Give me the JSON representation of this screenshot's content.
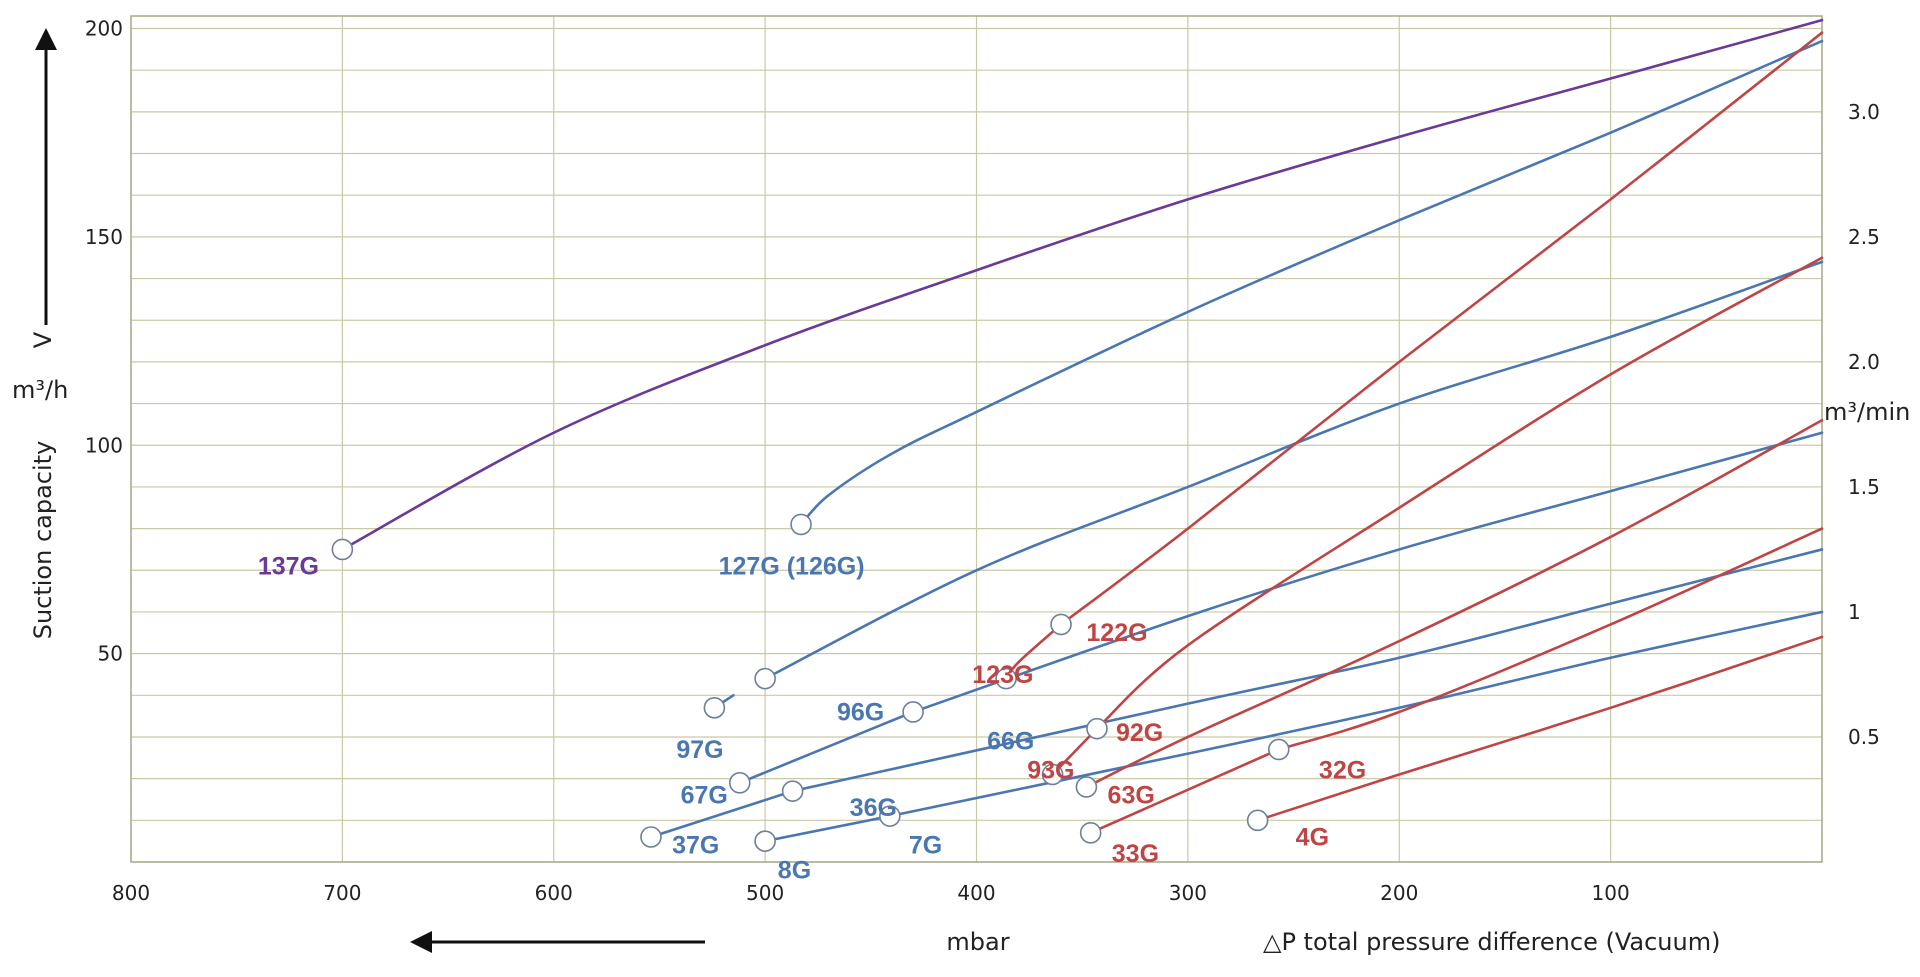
{
  "chart_data": {
    "type": "line",
    "title": "",
    "xlabel": "mbar",
    "x_description": "△P total pressure difference (Vacuum)",
    "ylabel": "Suction capacity",
    "ylabel_symbol": "V",
    "yunit": "m³/h",
    "y2unit": "m³/min",
    "xlim": [
      800,
      0
    ],
    "ylim": [
      0,
      203
    ],
    "x_ticks": [
      "800",
      "700",
      "600",
      "500",
      "400",
      "300",
      "200",
      "100"
    ],
    "y_ticks": [
      "200",
      "150",
      "100",
      "50"
    ],
    "y2_ticks": [
      "3.0",
      "2.5",
      "2.0",
      "1.5",
      "1",
      "0.5"
    ],
    "grid": true,
    "colors": {
      "purple": "#6a3a96",
      "blue": "#4a77b0",
      "red": "#bf4545",
      "grid": "#c9c9a7"
    },
    "series": [
      {
        "name": "137G",
        "color": "purple",
        "points": [
          [
            700,
            75
          ],
          [
            600,
            103
          ],
          [
            500,
            124
          ],
          [
            400,
            142
          ],
          [
            300,
            159
          ],
          [
            200,
            174
          ],
          [
            100,
            188
          ],
          [
            0,
            202
          ]
        ]
      },
      {
        "name": "127G (126G)",
        "color": "blue",
        "points": [
          [
            483,
            81
          ],
          [
            470,
            88
          ],
          [
            440,
            98
          ],
          [
            400,
            108
          ],
          [
            300,
            132
          ],
          [
            200,
            154
          ],
          [
            100,
            175
          ],
          [
            0,
            197
          ]
        ]
      },
      {
        "name": "96G",
        "color": "blue",
        "points": [
          [
            500,
            44
          ],
          [
            400,
            70
          ],
          [
            300,
            90
          ],
          [
            200,
            110
          ],
          [
            100,
            126
          ],
          [
            0,
            144
          ]
        ]
      },
      {
        "name": "97G",
        "color": "blue",
        "points": [
          [
            524,
            37
          ],
          [
            515,
            40
          ]
        ]
      },
      {
        "name": "66G",
        "color": "blue",
        "points": [
          [
            430,
            36
          ],
          [
            300,
            59
          ],
          [
            200,
            75
          ],
          [
            100,
            89
          ],
          [
            0,
            103
          ]
        ]
      },
      {
        "name": "67G",
        "color": "blue",
        "points": [
          [
            512,
            19
          ],
          [
            430,
            36
          ]
        ]
      },
      {
        "name": "36G",
        "color": "blue",
        "points": [
          [
            487,
            17
          ],
          [
            300,
            38
          ],
          [
            200,
            49
          ],
          [
            100,
            62
          ],
          [
            0,
            75
          ]
        ]
      },
      {
        "name": "37G",
        "color": "blue",
        "points": [
          [
            554,
            6
          ],
          [
            487,
            17
          ]
        ]
      },
      {
        "name": "7G",
        "color": "blue",
        "points": [
          [
            441,
            11
          ],
          [
            300,
            26
          ],
          [
            200,
            37
          ],
          [
            100,
            49
          ],
          [
            0,
            60
          ]
        ]
      },
      {
        "name": "8G",
        "color": "blue",
        "points": [
          [
            500,
            5
          ],
          [
            441,
            11
          ]
        ]
      },
      {
        "name": "122G",
        "color": "red",
        "points": [
          [
            360,
            57
          ],
          [
            300,
            80
          ],
          [
            200,
            120
          ],
          [
            100,
            159
          ],
          [
            0,
            199
          ]
        ]
      },
      {
        "name": "123G",
        "color": "red",
        "points": [
          [
            386,
            44
          ],
          [
            380,
            48
          ],
          [
            360,
            57
          ]
        ]
      },
      {
        "name": "92G",
        "color": "red",
        "points": [
          [
            343,
            32
          ],
          [
            300,
            52
          ],
          [
            200,
            85
          ],
          [
            100,
            117
          ],
          [
            0,
            145
          ]
        ]
      },
      {
        "name": "93G",
        "color": "red",
        "points": [
          [
            364,
            21
          ],
          [
            343,
            32
          ]
        ]
      },
      {
        "name": "63G",
        "color": "red",
        "points": [
          [
            348,
            18
          ],
          [
            300,
            30
          ],
          [
            200,
            53
          ],
          [
            100,
            78
          ],
          [
            0,
            106
          ]
        ]
      },
      {
        "name": "32G",
        "color": "red",
        "points": [
          [
            257,
            27
          ],
          [
            200,
            36
          ],
          [
            100,
            57
          ],
          [
            0,
            80
          ]
        ]
      },
      {
        "name": "33G",
        "color": "red",
        "points": [
          [
            346,
            7
          ],
          [
            257,
            27
          ]
        ]
      },
      {
        "name": "4G",
        "color": "red",
        "points": [
          [
            267,
            10
          ],
          [
            200,
            21
          ],
          [
            100,
            37
          ],
          [
            0,
            54
          ]
        ]
      }
    ]
  },
  "labels": [
    {
      "text": "137G",
      "x": 740,
      "y": 69,
      "color": "purple"
    },
    {
      "text": "127G (126G)",
      "x": 522,
      "y": 69,
      "color": "blue"
    },
    {
      "text": "96G",
      "x": 466,
      "y": 34,
      "color": "blue"
    },
    {
      "text": "97G",
      "x": 542,
      "y": 25,
      "color": "blue"
    },
    {
      "text": "66G",
      "x": 395,
      "y": 27,
      "color": "blue"
    },
    {
      "text": "67G",
      "x": 540,
      "y": 14,
      "color": "blue"
    },
    {
      "text": "36G",
      "x": 460,
      "y": 11,
      "color": "blue"
    },
    {
      "text": "37G",
      "x": 544,
      "y": 2,
      "color": "blue"
    },
    {
      "text": "7G",
      "x": 432,
      "y": 2,
      "color": "blue"
    },
    {
      "text": "8G",
      "x": 494,
      "y": -4,
      "color": "blue"
    },
    {
      "text": "122G",
      "x": 348,
      "y": 53,
      "color": "red"
    },
    {
      "text": "123G",
      "x": 402,
      "y": 43,
      "color": "red"
    },
    {
      "text": "92G",
      "x": 334,
      "y": 29,
      "color": "red"
    },
    {
      "text": "93G",
      "x": 376,
      "y": 20,
      "color": "red"
    },
    {
      "text": "63G",
      "x": 338,
      "y": 14,
      "color": "red"
    },
    {
      "text": "32G",
      "x": 238,
      "y": 20,
      "color": "red"
    },
    {
      "text": "33G",
      "x": 336,
      "y": 0,
      "color": "red"
    },
    {
      "text": "4G",
      "x": 249,
      "y": 4,
      "color": "red"
    }
  ],
  "markers": [
    {
      "x": 700,
      "y": 75
    },
    {
      "x": 483,
      "y": 81
    },
    {
      "x": 500,
      "y": 44
    },
    {
      "x": 524,
      "y": 37
    },
    {
      "x": 430,
      "y": 36
    },
    {
      "x": 512,
      "y": 19
    },
    {
      "x": 487,
      "y": 17
    },
    {
      "x": 554,
      "y": 6
    },
    {
      "x": 441,
      "y": 11
    },
    {
      "x": 500,
      "y": 5
    },
    {
      "x": 360,
      "y": 57
    },
    {
      "x": 386,
      "y": 44
    },
    {
      "x": 343,
      "y": 32
    },
    {
      "x": 364,
      "y": 21
    },
    {
      "x": 348,
      "y": 18
    },
    {
      "x": 257,
      "y": 27
    },
    {
      "x": 346,
      "y": 7
    },
    {
      "x": 267,
      "y": 10
    }
  ]
}
